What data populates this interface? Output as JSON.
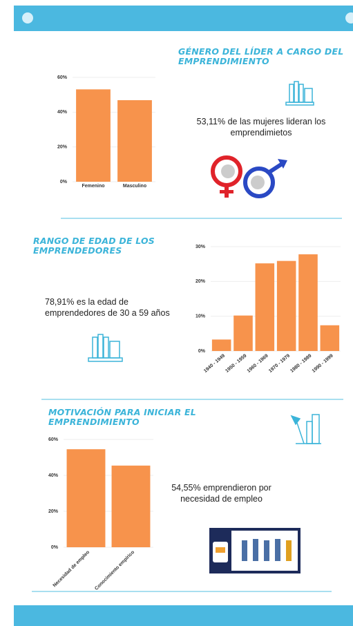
{
  "chart_data": [
    {
      "type": "bar",
      "title": "GÉNERO DEL LÍDER A CARGO DEL EMPRENDIMIENTO",
      "annotation": "53,11% de las mujeres lideran los emprendimietos",
      "categories": [
        "Femenino",
        "Masculino"
      ],
      "values": [
        53.11,
        46.89
      ],
      "color": "#f7934c",
      "ylim": [
        0,
        60
      ],
      "yticks": [
        {
          "value": 0,
          "label": "0%"
        },
        {
          "value": 20,
          "label": "20%"
        },
        {
          "value": 40,
          "label": "40%"
        },
        {
          "value": 60,
          "label": "60%"
        }
      ],
      "grid": true
    },
    {
      "type": "bar",
      "title": "RANGO DE EDAD DE LOS EMPRENDEDORES",
      "annotation": "78,91% es la edad de emprendedores de 30 a 59 años",
      "categories": [
        "1940 - 1949",
        "1950 - 1959",
        "1960 - 1969",
        "1970 - 1979",
        "1980 - 1989",
        "1990 - 1999"
      ],
      "values": [
        3.3,
        10.2,
        25.2,
        25.9,
        27.8,
        7.4
      ],
      "color": "#f7934c",
      "ylim": [
        0,
        30
      ],
      "yticks": [
        {
          "value": 0,
          "label": "0%"
        },
        {
          "value": 10,
          "label": "10%"
        },
        {
          "value": 20,
          "label": "20%"
        },
        {
          "value": 30,
          "label": "30%"
        }
      ],
      "grid": true
    },
    {
      "type": "bar",
      "title": "MOTIVACIÓN PARA INICIAR EL EMPRENDIMIENTO",
      "annotation": "54,55% emprendieron por necesidad de empleo",
      "categories": [
        "Necesidad de empleo",
        "Conocimiento empírico"
      ],
      "values": [
        54.55,
        45.45
      ],
      "color": "#f7934c",
      "ylim": [
        0,
        60
      ],
      "yticks": [
        {
          "value": 0,
          "label": "0%"
        },
        {
          "value": 20,
          "label": "20%"
        },
        {
          "value": 40,
          "label": "40%"
        },
        {
          "value": 60,
          "label": "60%"
        }
      ],
      "grid": true
    }
  ]
}
